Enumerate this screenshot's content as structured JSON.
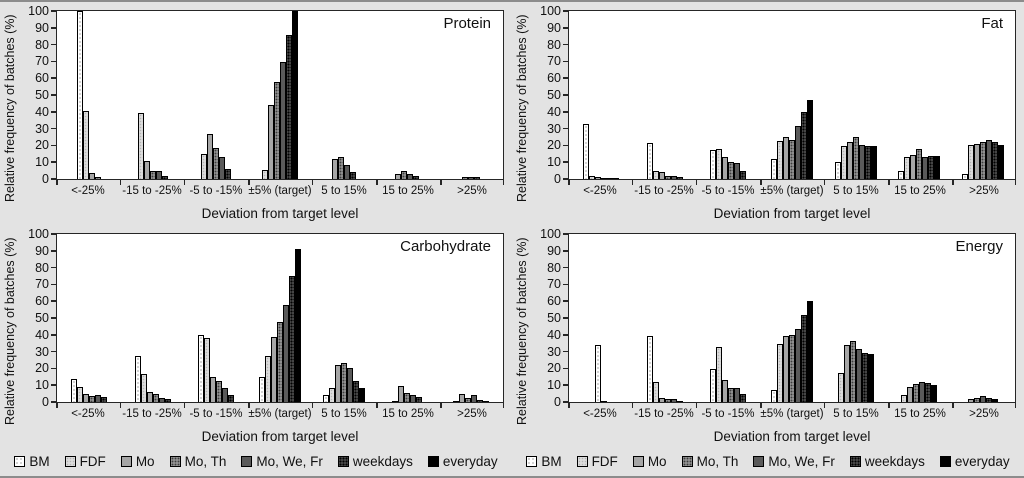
{
  "figure": {
    "background": "#e3e3e3",
    "axis_color": "#262626",
    "plot_background": "#ffffff"
  },
  "legend": {
    "position": "bottom",
    "items": [
      "BM",
      "FDF",
      "Mo",
      "Mo, Th",
      "Mo, We, Fr",
      "weekdays",
      "everyday"
    ]
  },
  "series_colors": {
    "BM": "#ffffff",
    "FDF": "#dcdcdc",
    "Mo": "#a6a6a6",
    "Mo, Th": "#8f8f8f",
    "Mo, We, Fr": "#5a5a5a",
    "weekdays": "#474747",
    "everyday": "#000000"
  },
  "chart_data": [
    {
      "type": "bar",
      "title": "Protein",
      "xlabel": "Deviation from target level",
      "ylabel": "Relative frequency of batches (%)",
      "ylim": [
        0,
        100
      ],
      "ytick_step": 10,
      "grid": false,
      "legend_position": "bottom",
      "categories": [
        "<-25%",
        "-15 to -25%",
        "-5 to -15%",
        "±5% (target)",
        "5 to 15%",
        "15 to 25%",
        ">25%"
      ],
      "series": [
        {
          "name": "BM",
          "values": [
            100,
            0,
            0,
            0,
            0,
            0,
            0
          ]
        },
        {
          "name": "FDF",
          "values": [
            40.5,
            39.5,
            15,
            5.5,
            0,
            0,
            0
          ]
        },
        {
          "name": "Mo",
          "values": [
            3.5,
            11,
            27,
            44,
            12,
            3,
            0
          ]
        },
        {
          "name": "Mo, Th",
          "values": [
            1,
            5,
            18.5,
            57.5,
            13,
            4.5,
            1
          ]
        },
        {
          "name": "Mo, We, Fr",
          "values": [
            0,
            5,
            13,
            69.5,
            8.5,
            3,
            1
          ]
        },
        {
          "name": "weekdays",
          "values": [
            0,
            1.5,
            6,
            86,
            4,
            2,
            1
          ]
        },
        {
          "name": "everyday",
          "values": [
            0,
            0,
            0,
            100,
            0,
            0,
            0
          ]
        }
      ]
    },
    {
      "type": "bar",
      "title": "Fat",
      "xlabel": "Deviation from target level",
      "ylabel": "Relative frequency of batches (%)",
      "ylim": [
        0,
        100
      ],
      "ytick_step": 10,
      "grid": false,
      "legend_position": "bottom",
      "categories": [
        "<-25%",
        "-15 to -25%",
        "-5 to -15%",
        "±5% (target)",
        "5 to 15%",
        "15 to 25%",
        ">25%"
      ],
      "series": [
        {
          "name": "BM",
          "values": [
            33,
            21.5,
            17,
            12,
            10,
            4.5,
            3
          ]
        },
        {
          "name": "FDF",
          "values": [
            2,
            5,
            18,
            22.5,
            19.5,
            13,
            20.5
          ]
        },
        {
          "name": "Mo",
          "values": [
            1,
            4,
            13,
            25,
            22,
            14.5,
            21
          ]
        },
        {
          "name": "Mo, Th",
          "values": [
            0.5,
            1.5,
            10,
            23,
            25,
            18,
            22
          ]
        },
        {
          "name": "Mo, We, Fr",
          "values": [
            0.5,
            2,
            9.5,
            31.5,
            20.5,
            13,
            23.5
          ]
        },
        {
          "name": "weekdays",
          "values": [
            0.5,
            1,
            5,
            40,
            19.5,
            13.5,
            22
          ]
        },
        {
          "name": "everyday",
          "values": [
            0,
            0,
            0,
            47,
            19.5,
            13.5,
            20.5
          ]
        }
      ]
    },
    {
      "type": "bar",
      "title": "Carbohydrate",
      "xlabel": "Deviation from target level",
      "ylabel": "Relative frequency of batches (%)",
      "ylim": [
        0,
        100
      ],
      "ytick_step": 10,
      "grid": false,
      "legend_position": "bottom",
      "categories": [
        "<-25%",
        "-15 to -25%",
        "-5 to -15%",
        "±5% (target)",
        "5 to 15%",
        "15 to 25%",
        ">25%"
      ],
      "series": [
        {
          "name": "BM",
          "values": [
            13.5,
            27.5,
            40,
            15,
            4,
            0.5,
            0.5
          ]
        },
        {
          "name": "FDF",
          "values": [
            9,
            16.5,
            38,
            27.5,
            8.5,
            0,
            0
          ]
        },
        {
          "name": "Mo",
          "values": [
            4.5,
            6,
            15,
            38.5,
            22,
            9.5,
            4.5
          ]
        },
        {
          "name": "Mo, Th",
          "values": [
            3.5,
            4.5,
            12.5,
            47.5,
            23,
            5.5,
            2.5
          ]
        },
        {
          "name": "Mo, We, Fr",
          "values": [
            4,
            2.5,
            8.5,
            57.5,
            20,
            4,
            4
          ]
        },
        {
          "name": "weekdays",
          "values": [
            3,
            2,
            4,
            75,
            12.5,
            3,
            1
          ]
        },
        {
          "name": "everyday",
          "values": [
            0,
            0,
            0,
            91,
            8.5,
            0,
            0.5
          ]
        }
      ]
    },
    {
      "type": "bar",
      "title": "Energy",
      "xlabel": "Deviation from target level",
      "ylabel": "Relative frequency of batches (%)",
      "ylim": [
        0,
        100
      ],
      "ytick_step": 10,
      "grid": false,
      "legend_position": "bottom",
      "categories": [
        "<-25%",
        "-15 to -25%",
        "-5 to -15%",
        "±5% (target)",
        "5 to 15%",
        "15 to 25%",
        ">25%"
      ],
      "series": [
        {
          "name": "BM",
          "values": [
            34,
            39,
            19.5,
            7,
            0,
            0,
            0
          ]
        },
        {
          "name": "FDF",
          "values": [
            0.5,
            12,
            32.5,
            34.5,
            17,
            4,
            0
          ]
        },
        {
          "name": "Mo",
          "values": [
            0,
            2.5,
            13,
            39.5,
            34,
            9,
            2
          ]
        },
        {
          "name": "Mo, Th",
          "values": [
            0,
            1.5,
            8.5,
            40,
            36.5,
            11,
            2.5
          ]
        },
        {
          "name": "Mo, We, Fr",
          "values": [
            0,
            1.5,
            8.5,
            43.5,
            31.5,
            12,
            3.5
          ]
        },
        {
          "name": "weekdays",
          "values": [
            0,
            0.5,
            5,
            51.5,
            29,
            11.5,
            2.5
          ]
        },
        {
          "name": "everyday",
          "values": [
            0,
            0,
            0,
            60,
            28.5,
            10,
            1.5
          ]
        }
      ]
    }
  ]
}
